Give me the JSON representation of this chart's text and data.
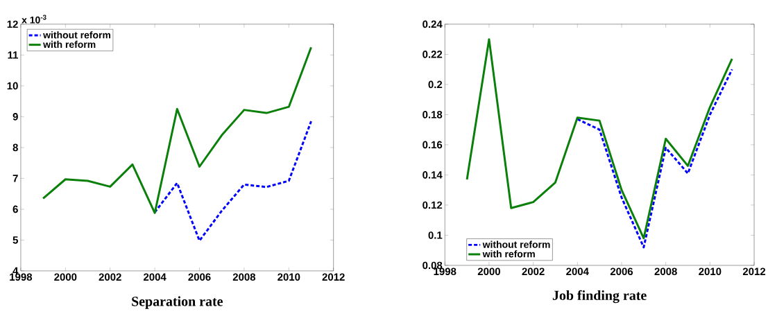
{
  "chart_data": [
    {
      "type": "line",
      "title": "Separation rate",
      "annotations": [
        "x 10$^{-3}$"
      ],
      "x": [
        1999,
        2000,
        2001,
        2002,
        2003,
        2004,
        2005,
        2006,
        2007,
        2008,
        2009,
        2010,
        2011
      ],
      "xlim": [
        1998,
        2012
      ],
      "xticks": [
        1998,
        2000,
        2002,
        2004,
        2006,
        2008,
        2010,
        2012
      ],
      "ylim": [
        4,
        12
      ],
      "yticks": [
        4,
        5,
        6,
        7,
        8,
        9,
        10,
        11,
        12
      ],
      "legend": "top left",
      "series": [
        {
          "name": "without reform",
          "color": "#0000ff",
          "line_style": "dashed",
          "values": [
            null,
            null,
            null,
            null,
            null,
            5.9,
            6.85,
            4.98,
            5.95,
            6.8,
            6.72,
            6.92,
            8.85
          ]
        },
        {
          "name": "with reform",
          "color": "#0a800a",
          "line_style": "solid",
          "values": [
            6.35,
            6.97,
            6.92,
            6.73,
            7.45,
            5.88,
            9.25,
            7.38,
            8.4,
            9.22,
            9.12,
            9.32,
            11.25
          ]
        }
      ]
    },
    {
      "type": "line",
      "title": "Job finding rate",
      "x": [
        1999,
        2000,
        2001,
        2002,
        2003,
        2004,
        2005,
        2006,
        2007,
        2008,
        2009,
        2010,
        2011
      ],
      "xlim": [
        1998,
        2012
      ],
      "xticks": [
        1998,
        2000,
        2002,
        2004,
        2006,
        2008,
        2010,
        2012
      ],
      "ylim": [
        0.08,
        0.24
      ],
      "yticks": [
        0.08,
        0.1,
        0.12,
        0.14,
        0.16,
        0.18,
        0.2,
        0.22,
        0.24
      ],
      "legend": "bottom left",
      "series": [
        {
          "name": "without reform",
          "color": "#0000ff",
          "line_style": "dashed",
          "values": [
            null,
            null,
            null,
            null,
            null,
            0.177,
            0.17,
            0.125,
            0.092,
            0.158,
            0.141,
            0.18,
            0.21
          ]
        },
        {
          "name": "with reform",
          "color": "#0a800a",
          "line_style": "solid",
          "values": [
            0.137,
            0.23,
            0.118,
            0.122,
            0.135,
            0.178,
            0.176,
            0.13,
            0.098,
            0.164,
            0.146,
            0.185,
            0.217
          ]
        }
      ]
    }
  ]
}
